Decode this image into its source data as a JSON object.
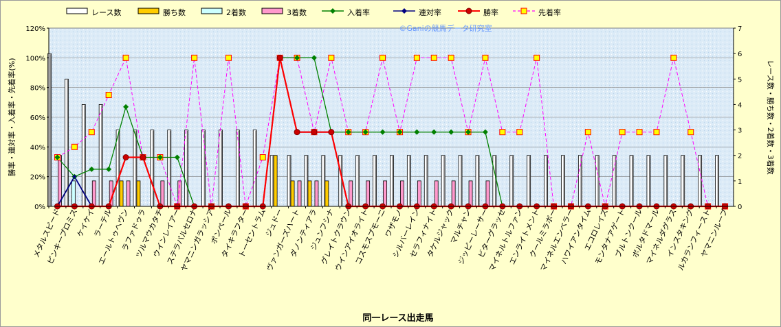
{
  "chart_data": {
    "type": "bar",
    "title": "",
    "watermark": "©Ganiの競馬データ研究室",
    "xlabel": "同一レース出走馬",
    "ylabel_left": "勝率・連対率・入着率・先着率(%)",
    "ylabel_right": "レース数・勝ち数・2着数・3着数",
    "y_left_range": [
      0,
      120
    ],
    "y_left_ticks": [
      "0%",
      "20%",
      "40%",
      "60%",
      "80%",
      "100%",
      "120%"
    ],
    "y_right_range": [
      0,
      7
    ],
    "y_right_ticks": [
      "0",
      "1",
      "2",
      "3",
      "4",
      "5",
      "6",
      "7"
    ],
    "grid": true,
    "legend_position": "top",
    "categories": [
      "メタルスピード",
      "ピンキープロミス",
      "ケイケイ",
      "ラーテル",
      "エールトゥヘヴン",
      "ラファドゥラ",
      "ツルマウカタチ",
      "ウインレイアー",
      "ステラパルセロナ",
      "ヤマニンガラッシア",
      "ポンペール",
      "タイキラフター",
      "トーセントラム",
      "ジュドー",
      "ヴァンガーズハート",
      "ダノンティアラ",
      "ジュンフシナ",
      "グレイトクラウン",
      "ウインアイオライト",
      "コスモスプモーニ",
      "ワザモノ",
      "シルバーレイン",
      "セラフィナイト",
      "タケルジャック",
      "マルチャン",
      "ジッピーレーサー",
      "ビターグラッセ",
      "マイネルトルファン",
      "エンライトメント",
      "クールミラボー",
      "マイネルエンベラー",
      "ハワイアンタイム",
      "エコロレイズ",
      "モンタナアゲート",
      "ブルトンクール",
      "ボルタドマール",
      "マイネルダグラス",
      "インスタキング",
      "ルカランフィースト",
      "ヤマニンループ"
    ],
    "series": [
      {
        "name": "レース数",
        "axis": "right",
        "kind": "bar",
        "color": "#ffffff",
        "values": [
          6,
          5,
          4,
          4,
          3,
          3,
          3,
          3,
          3,
          3,
          3,
          3,
          3,
          2,
          2,
          2,
          2,
          2,
          2,
          2,
          2,
          2,
          2,
          2,
          2,
          2,
          2,
          2,
          2,
          2,
          2,
          2,
          2,
          2,
          2,
          2,
          2,
          2,
          2,
          2
        ]
      },
      {
        "name": "勝ち数",
        "axis": "right",
        "kind": "bar",
        "color": "#ffcc00",
        "values": [
          0,
          0,
          0,
          0,
          1,
          1,
          0,
          0,
          0,
          0,
          0,
          0,
          0,
          2,
          1,
          1,
          1,
          0,
          0,
          0,
          0,
          0,
          0,
          0,
          0,
          0,
          0,
          0,
          0,
          0,
          0,
          0,
          0,
          0,
          0,
          0,
          0,
          0,
          0,
          0
        ]
      },
      {
        "name": "2着数",
        "axis": "right",
        "kind": "bar",
        "color": "#ccffff",
        "values": [
          0,
          1,
          0,
          0,
          0,
          0,
          0,
          0,
          0,
          0,
          0,
          0,
          0,
          0,
          0,
          0,
          0,
          0,
          0,
          0,
          0,
          0,
          0,
          0,
          0,
          0,
          0,
          0,
          0,
          0,
          0,
          0,
          0,
          0,
          0,
          0,
          0,
          0,
          0,
          0
        ]
      },
      {
        "name": "3着数",
        "axis": "right",
        "kind": "bar",
        "color": "#ff99cc",
        "values": [
          2,
          0,
          1,
          1,
          1,
          0,
          1,
          1,
          0,
          0,
          0,
          0,
          0,
          0,
          1,
          1,
          0,
          1,
          1,
          1,
          1,
          1,
          1,
          1,
          1,
          1,
          0,
          0,
          0,
          0,
          0,
          0,
          0,
          0,
          0,
          0,
          0,
          0,
          0,
          0
        ]
      },
      {
        "name": "入着率",
        "axis": "left",
        "kind": "line",
        "color": "#008000",
        "values": [
          33,
          20,
          25,
          25,
          67,
          33,
          33,
          33,
          0,
          0,
          0,
          0,
          0,
          100,
          100,
          100,
          50,
          50,
          50,
          50,
          50,
          50,
          50,
          50,
          50,
          50,
          0,
          0,
          0,
          0,
          0,
          0,
          0,
          0,
          0,
          0,
          0,
          0,
          0,
          0
        ]
      },
      {
        "name": "連対率",
        "axis": "left",
        "kind": "line",
        "color": "#000080",
        "values": [
          0,
          20,
          0,
          0,
          33,
          33,
          0,
          0,
          0,
          0,
          0,
          0,
          0,
          100,
          50,
          50,
          50,
          0,
          0,
          0,
          0,
          0,
          0,
          0,
          0,
          0,
          0,
          0,
          0,
          0,
          0,
          0,
          0,
          0,
          0,
          0,
          0,
          0,
          0,
          0
        ]
      },
      {
        "name": "勝率",
        "axis": "left",
        "kind": "line",
        "color": "#ff0000",
        "values": [
          0,
          0,
          0,
          0,
          33,
          33,
          0,
          0,
          0,
          0,
          0,
          0,
          0,
          100,
          50,
          50,
          50,
          0,
          0,
          0,
          0,
          0,
          0,
          0,
          0,
          0,
          0,
          0,
          0,
          0,
          0,
          0,
          0,
          0,
          0,
          0,
          0,
          0,
          0,
          0
        ]
      },
      {
        "name": "先着率",
        "axis": "left",
        "kind": "line",
        "color": "#ff00ff",
        "values": [
          33,
          40,
          50,
          75,
          100,
          33,
          33,
          0,
          100,
          0,
          100,
          0,
          33,
          100,
          100,
          50,
          100,
          50,
          50,
          100,
          50,
          100,
          100,
          100,
          50,
          100,
          50,
          50,
          100,
          0,
          0,
          50,
          0,
          50,
          50,
          50,
          100,
          50,
          0,
          0
        ]
      }
    ]
  }
}
